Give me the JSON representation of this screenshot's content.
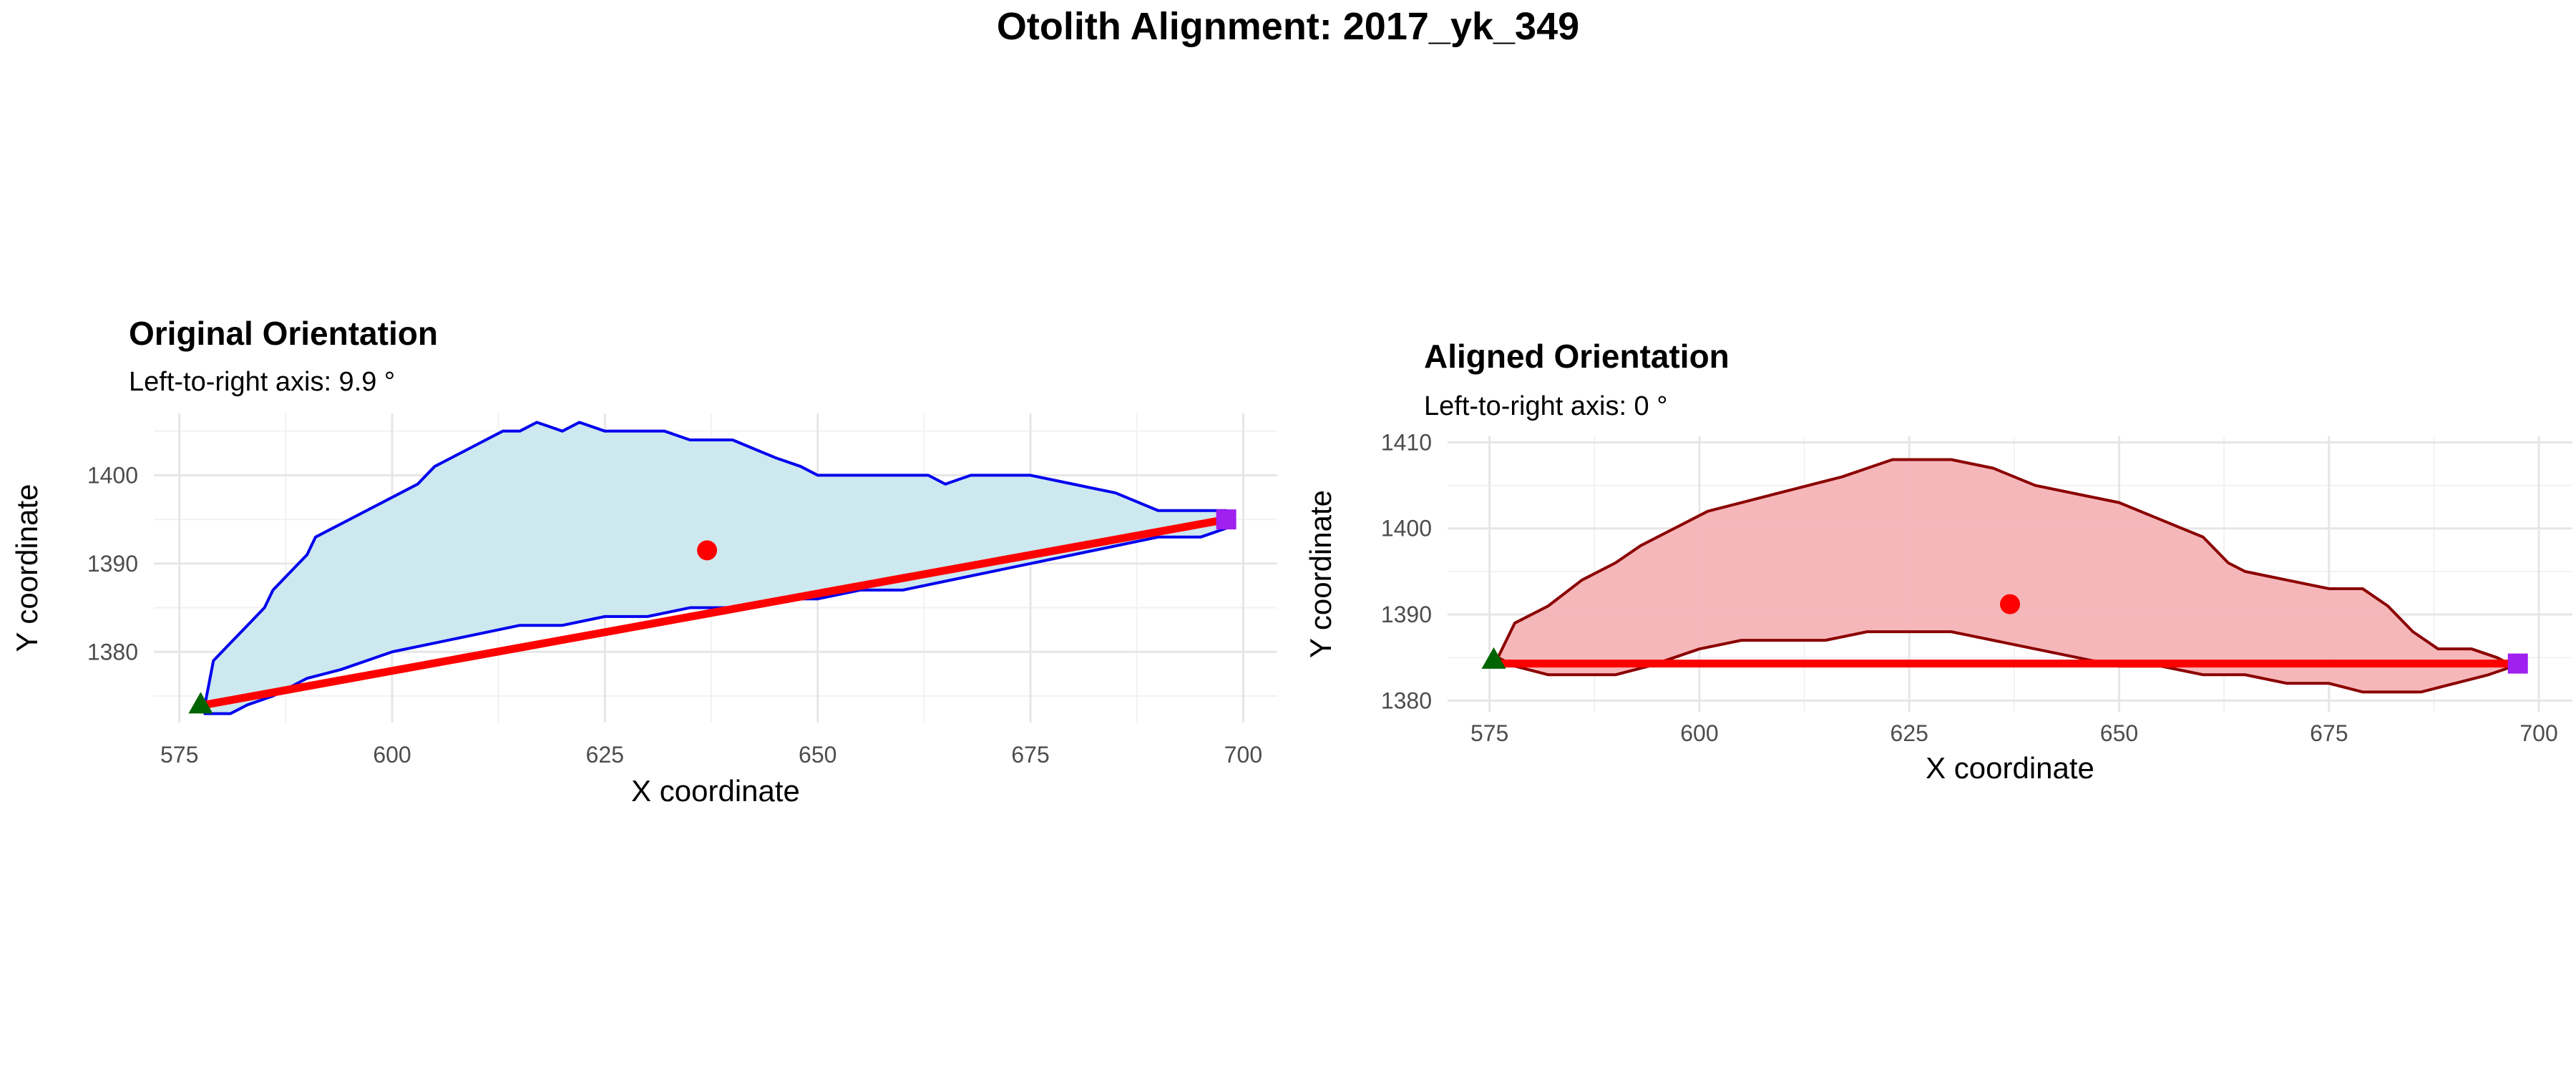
{
  "title": "Otolith Alignment: 2017_yk_349",
  "colors": {
    "original_fill": "#cde8ef",
    "original_outline": "#0000ee",
    "aligned_fill": "#f4b3b6",
    "aligned_outline": "#8b0000",
    "axis_line": "#ff0000",
    "centroid": "#ff0000",
    "start_marker": "#006400",
    "end_marker": "#a020f0"
  },
  "chart_data": [
    {
      "type": "line",
      "title": "Original Orientation",
      "subtitle": "Left-to-right axis: 9.9 °",
      "xlabel": "X coordinate",
      "ylabel": "Y coordinate",
      "xlim": [
        572,
        704
      ],
      "ylim": [
        1372,
        1407
      ],
      "xticks": [
        575,
        600,
        625,
        650,
        675,
        700
      ],
      "yticks": [
        1380,
        1390,
        1400
      ],
      "outline_top": [
        [
          578,
          1374
        ],
        [
          579,
          1379
        ],
        [
          581,
          1381
        ],
        [
          583,
          1383
        ],
        [
          585,
          1385
        ],
        [
          586,
          1387
        ],
        [
          588,
          1389
        ],
        [
          590,
          1391
        ],
        [
          591,
          1393
        ],
        [
          593,
          1394
        ],
        [
          595,
          1395
        ],
        [
          597,
          1396
        ],
        [
          599,
          1397
        ],
        [
          601,
          1398
        ],
        [
          603,
          1399
        ],
        [
          605,
          1401
        ],
        [
          607,
          1402
        ],
        [
          609,
          1403
        ],
        [
          611,
          1404
        ],
        [
          613,
          1405
        ],
        [
          615,
          1405
        ],
        [
          617,
          1406
        ],
        [
          620,
          1405
        ],
        [
          622,
          1406
        ],
        [
          625,
          1405
        ],
        [
          628,
          1405
        ],
        [
          632,
          1405
        ],
        [
          635,
          1404
        ],
        [
          640,
          1404
        ],
        [
          645,
          1402
        ],
        [
          648,
          1401
        ],
        [
          650,
          1400
        ],
        [
          655,
          1400
        ],
        [
          660,
          1400
        ],
        [
          663,
          1400
        ],
        [
          665,
          1399
        ],
        [
          668,
          1400
        ],
        [
          675,
          1400
        ],
        [
          680,
          1399
        ],
        [
          685,
          1398
        ],
        [
          690,
          1396
        ],
        [
          695,
          1396
        ],
        [
          698,
          1396
        ]
      ],
      "outline_bottom": [
        [
          698,
          1394
        ],
        [
          695,
          1393
        ],
        [
          690,
          1393
        ],
        [
          685,
          1392
        ],
        [
          680,
          1391
        ],
        [
          675,
          1390
        ],
        [
          670,
          1389
        ],
        [
          665,
          1388
        ],
        [
          660,
          1387
        ],
        [
          655,
          1387
        ],
        [
          650,
          1386
        ],
        [
          645,
          1386
        ],
        [
          640,
          1385
        ],
        [
          635,
          1385
        ],
        [
          630,
          1384
        ],
        [
          625,
          1384
        ],
        [
          620,
          1383
        ],
        [
          615,
          1383
        ],
        [
          610,
          1382
        ],
        [
          605,
          1381
        ],
        [
          600,
          1380
        ],
        [
          597,
          1379
        ],
        [
          594,
          1378
        ],
        [
          590,
          1377
        ],
        [
          586,
          1375
        ],
        [
          583,
          1374
        ],
        [
          581,
          1373
        ],
        [
          578,
          1373
        ]
      ],
      "axis_line": [
        [
          578,
          1374
        ],
        [
          698,
          1395
        ]
      ],
      "centroid": [
        637,
        1391.5
      ],
      "start_point": [
        577.5,
        1374
      ],
      "end_point": [
        698,
        1395
      ]
    },
    {
      "type": "line",
      "title": "Aligned Orientation",
      "subtitle": "Left-to-right axis: 0 °",
      "xlabel": "X coordinate",
      "ylabel": "Y coordinate",
      "xlim": [
        570,
        704
      ],
      "ylim": [
        1378.7,
        1410.7
      ],
      "xticks": [
        575,
        600,
        625,
        650,
        675,
        700
      ],
      "yticks": [
        1380,
        1390,
        1400,
        1410
      ],
      "outline_top": [
        [
          576,
          1385
        ],
        [
          578,
          1389
        ],
        [
          582,
          1391
        ],
        [
          586,
          1394
        ],
        [
          590,
          1396
        ],
        [
          593,
          1398
        ],
        [
          597,
          1400
        ],
        [
          601,
          1402
        ],
        [
          605,
          1403
        ],
        [
          609,
          1404
        ],
        [
          613,
          1405
        ],
        [
          617,
          1406
        ],
        [
          620,
          1407
        ],
        [
          623,
          1408
        ],
        [
          627,
          1408
        ],
        [
          630,
          1408
        ],
        [
          635,
          1407
        ],
        [
          640,
          1405
        ],
        [
          645,
          1404
        ],
        [
          650,
          1403
        ],
        [
          655,
          1401
        ],
        [
          660,
          1399
        ],
        [
          663,
          1396
        ],
        [
          665,
          1395
        ],
        [
          670,
          1394
        ],
        [
          675,
          1393
        ],
        [
          679,
          1393
        ],
        [
          682,
          1391
        ],
        [
          685,
          1388
        ],
        [
          688,
          1386
        ],
        [
          692,
          1386
        ],
        [
          695,
          1385
        ],
        [
          697,
          1384
        ]
      ],
      "outline_bottom": [
        [
          697,
          1384
        ],
        [
          694,
          1383
        ],
        [
          690,
          1382
        ],
        [
          686,
          1381
        ],
        [
          683,
          1381
        ],
        [
          679,
          1381
        ],
        [
          675,
          1382
        ],
        [
          670,
          1382
        ],
        [
          665,
          1383
        ],
        [
          660,
          1383
        ],
        [
          655,
          1384
        ],
        [
          650,
          1384
        ],
        [
          645,
          1385
        ],
        [
          640,
          1386
        ],
        [
          635,
          1387
        ],
        [
          630,
          1388
        ],
        [
          625,
          1388
        ],
        [
          620,
          1388
        ],
        [
          615,
          1387
        ],
        [
          610,
          1387
        ],
        [
          605,
          1387
        ],
        [
          600,
          1386
        ],
        [
          597,
          1385
        ],
        [
          594,
          1384
        ],
        [
          590,
          1383
        ],
        [
          586,
          1383
        ],
        [
          582,
          1383
        ],
        [
          578,
          1384
        ],
        [
          576,
          1385
        ]
      ],
      "axis_line": [
        [
          576,
          1384.3
        ],
        [
          697,
          1384.3
        ]
      ],
      "centroid": [
        637,
        1391.2
      ],
      "start_point": [
        575.5,
        1384.7
      ],
      "end_point": [
        697.5,
        1384.3
      ]
    }
  ]
}
